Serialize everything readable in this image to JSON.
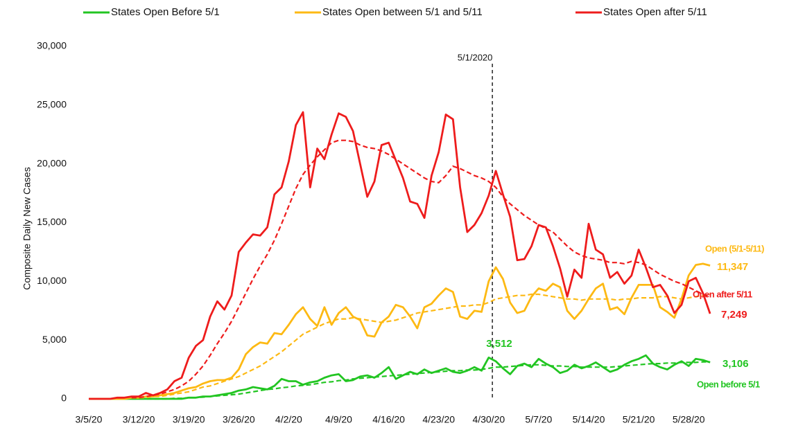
{
  "chart_data": {
    "type": "line",
    "y_label": "Composite Daily New Cases",
    "ylim": [
      0,
      30000
    ],
    "yticks": [
      0,
      {
        "value": 5000,
        "label": "5,000"
      },
      {
        "value": 10000,
        "label": "10,000"
      },
      {
        "value": 15000,
        "label": "15,000"
      },
      {
        "value": 20000,
        "label": "20,000"
      },
      {
        "value": 25000,
        "label": "25,000"
      },
      {
        "value": 30000,
        "label": "30,000"
      }
    ],
    "categories": [
      "3/5/20",
      null,
      null,
      null,
      null,
      null,
      null,
      "3/12/20",
      null,
      null,
      null,
      null,
      null,
      null,
      "3/19/20",
      null,
      null,
      null,
      null,
      null,
      null,
      "3/26/20",
      null,
      null,
      null,
      null,
      null,
      null,
      "4/2/20",
      null,
      null,
      null,
      null,
      null,
      null,
      "4/9/20",
      null,
      null,
      null,
      null,
      null,
      null,
      "4/16/20",
      null,
      null,
      null,
      null,
      null,
      null,
      "4/23/20",
      null,
      null,
      null,
      null,
      null,
      null,
      "4/30/20",
      null,
      null,
      null,
      null,
      null,
      null,
      "5/7/20",
      null,
      null,
      null,
      null,
      null,
      null,
      "5/14/20",
      null,
      null,
      null,
      null,
      null,
      null,
      "5/21/20",
      null,
      null,
      null,
      null,
      null,
      null,
      "5/28/20",
      null,
      null,
      null
    ],
    "annotation": {
      "text": "5/1/2020",
      "category_index": 57
    },
    "legend": "top",
    "series": [
      {
        "name": "States Open Before 5/1",
        "color": "#22c522",
        "end_label": "Open before 5/1",
        "values": [
          0,
          0,
          0,
          0,
          0,
          0,
          0,
          0,
          0,
          0,
          0,
          0,
          0,
          0,
          100,
          100,
          200,
          200,
          300,
          400,
          500,
          700,
          800,
          1000,
          900,
          800,
          1100,
          1700,
          1500,
          1500,
          1200,
          1400,
          1500,
          1800,
          2000,
          2100,
          1500,
          1600,
          1900,
          2000,
          1800,
          2200,
          2700,
          1700,
          2000,
          2300,
          2100,
          2500,
          2200,
          2400,
          2600,
          2300,
          2200,
          2400,
          2700,
          2400,
          3512,
          3200,
          2600,
          2100,
          2800,
          3000,
          2700,
          3400,
          3000,
          2700,
          2200,
          2400,
          2900,
          2600,
          2800,
          3100,
          2700,
          2300,
          2500,
          2900,
          3200,
          3400,
          3700,
          3000,
          2700,
          2500,
          2900,
          3200,
          2800,
          3400,
          3300,
          3106
        ],
        "value_labels": [
          null,
          null,
          null,
          null,
          null,
          null,
          null,
          null,
          null,
          null,
          null,
          null,
          null,
          null,
          null,
          null,
          null,
          null,
          null,
          null,
          null,
          null,
          null,
          null,
          null,
          null,
          null,
          null,
          null,
          null,
          null,
          null,
          null,
          null,
          null,
          null,
          null,
          null,
          null,
          null,
          null,
          null,
          null,
          null,
          null,
          null,
          null,
          null,
          null,
          null,
          null,
          null,
          null,
          null,
          null,
          null,
          "3,512",
          null,
          null,
          null,
          null,
          null,
          null,
          null,
          null,
          null,
          null,
          null,
          null,
          null,
          null,
          null,
          null,
          null,
          null,
          null,
          null,
          null,
          null,
          null,
          null,
          null,
          null,
          null,
          null,
          null,
          null,
          "3,106"
        ],
        "trend": [
          null,
          null,
          null,
          null,
          null,
          null,
          0,
          0,
          0,
          0,
          0,
          0,
          50,
          50,
          100,
          100,
          150,
          200,
          250,
          300,
          350,
          400,
          500,
          600,
          700,
          800,
          850,
          950,
          1000,
          1100,
          1150,
          1200,
          1300,
          1400,
          1450,
          1550,
          1600,
          1700,
          1750,
          1800,
          1850,
          1900,
          1950,
          2000,
          2050,
          2100,
          2150,
          2200,
          2250,
          2300,
          2350,
          2400,
          2400,
          2450,
          2450,
          2500,
          2600,
          2700,
          2700,
          2750,
          2800,
          2850,
          2900,
          2900,
          2850,
          2800,
          2800,
          2750,
          2750,
          2700,
          2700,
          2700,
          2700,
          2700,
          2750,
          2800,
          2850,
          2900,
          2950,
          3000,
          3000,
          3050,
          3050,
          3100,
          3100,
          3100,
          3150,
          3150
        ]
      },
      {
        "name": "States Open between 5/1 and 5/11",
        "color": "#fdb913",
        "end_label": "Open (5/1-5/11)",
        "values": [
          0,
          0,
          0,
          0,
          0,
          0,
          100,
          100,
          200,
          200,
          300,
          400,
          500,
          700,
          900,
          1000,
          1300,
          1500,
          1600,
          1600,
          1800,
          2500,
          3800,
          4400,
          4800,
          4700,
          5600,
          5500,
          6300,
          7200,
          7800,
          6800,
          6200,
          7800,
          6300,
          7300,
          7800,
          7000,
          6700,
          5400,
          5300,
          6500,
          7000,
          8000,
          7800,
          7000,
          6000,
          7800,
          8100,
          8800,
          9400,
          9100,
          7000,
          6800,
          7500,
          7400,
          10000,
          11200,
          10200,
          8200,
          7300,
          7500,
          8700,
          9400,
          9200,
          9800,
          9500,
          7500,
          6800,
          7500,
          8500,
          9400,
          9800,
          7600,
          7800,
          7200,
          8600,
          9700,
          9700,
          9700,
          7800,
          7400,
          6900,
          8500,
          10500,
          11400,
          11500,
          11347
        ],
        "value_labels": [
          null,
          null,
          null,
          null,
          null,
          null,
          null,
          null,
          null,
          null,
          null,
          null,
          null,
          null,
          null,
          null,
          null,
          null,
          null,
          null,
          null,
          null,
          null,
          null,
          null,
          null,
          null,
          null,
          null,
          null,
          null,
          null,
          null,
          null,
          null,
          null,
          null,
          null,
          null,
          null,
          null,
          null,
          null,
          null,
          null,
          null,
          null,
          null,
          null,
          null,
          null,
          null,
          null,
          null,
          null,
          null,
          null,
          null,
          null,
          null,
          null,
          null,
          null,
          null,
          null,
          null,
          null,
          null,
          null,
          null,
          null,
          null,
          null,
          null,
          null,
          null,
          null,
          null,
          null,
          null,
          null,
          null,
          null,
          null,
          null,
          null,
          null,
          "11,347"
        ],
        "trend": [
          null,
          null,
          null,
          null,
          null,
          null,
          100,
          100,
          100,
          200,
          200,
          300,
          400,
          500,
          600,
          800,
          1000,
          1100,
          1300,
          1500,
          1700,
          1900,
          2200,
          2500,
          2800,
          3200,
          3600,
          4000,
          4500,
          5000,
          5500,
          5800,
          6100,
          6400,
          6600,
          6800,
          6800,
          6900,
          6800,
          6700,
          6600,
          6500,
          6600,
          6700,
          6900,
          7100,
          7300,
          7400,
          7500,
          7600,
          7700,
          7800,
          7900,
          7900,
          8000,
          8000,
          8200,
          8500,
          8600,
          8700,
          8800,
          8800,
          8900,
          8900,
          8800,
          8700,
          8600,
          8500,
          8500,
          8400,
          8500,
          8500,
          8500,
          8500,
          8400,
          8500,
          8500,
          8600,
          8600,
          8600,
          8700,
          8700,
          8600,
          8500,
          8600,
          8700,
          8800,
          8900
        ]
      },
      {
        "name": "States Open after 5/11",
        "color": "#ee1c1c",
        "end_label": "Open after 5/11",
        "values": [
          0,
          0,
          0,
          0,
          100,
          100,
          200,
          200,
          500,
          300,
          500,
          800,
          1500,
          1800,
          3500,
          4500,
          5000,
          7000,
          8300,
          7600,
          8800,
          12500,
          13300,
          14000,
          13900,
          14600,
          17400,
          18000,
          20200,
          23300,
          24400,
          18000,
          21300,
          20400,
          22500,
          24300,
          24000,
          22800,
          20000,
          17200,
          18500,
          21600,
          21800,
          20300,
          18800,
          16800,
          16600,
          15400,
          19000,
          21000,
          24200,
          23800,
          18000,
          14200,
          14800,
          15800,
          17300,
          19400,
          17400,
          15500,
          11800,
          11900,
          13000,
          14800,
          14600,
          13000,
          11100,
          8700,
          11000,
          10300,
          14900,
          12700,
          12300,
          10300,
          10800,
          9800,
          10500,
          12700,
          11200,
          9500,
          9700,
          8800,
          7300,
          8000,
          10000,
          10300,
          9000,
          7249
        ],
        "value_labels": [
          null,
          null,
          null,
          null,
          null,
          null,
          null,
          null,
          null,
          null,
          null,
          null,
          null,
          null,
          null,
          null,
          null,
          null,
          null,
          null,
          null,
          null,
          null,
          null,
          null,
          null,
          null,
          null,
          null,
          null,
          null,
          null,
          null,
          null,
          null,
          null,
          null,
          null,
          null,
          null,
          null,
          null,
          null,
          null,
          null,
          null,
          null,
          null,
          null,
          null,
          null,
          null,
          null,
          null,
          null,
          null,
          null,
          null,
          null,
          null,
          null,
          null,
          null,
          null,
          null,
          null,
          null,
          null,
          null,
          null,
          null,
          null,
          null,
          null,
          null,
          null,
          null,
          null,
          null,
          null,
          null,
          null,
          null,
          null,
          null,
          null,
          null,
          "7,249"
        ],
        "trend": [
          null,
          null,
          null,
          null,
          null,
          null,
          100,
          100,
          200,
          300,
          400,
          600,
          800,
          1100,
          1500,
          2100,
          2800,
          3700,
          4700,
          5600,
          6600,
          7800,
          9000,
          10200,
          11300,
          12300,
          13500,
          14900,
          16400,
          17900,
          19100,
          19900,
          20600,
          21200,
          21800,
          22000,
          22000,
          21900,
          21600,
          21400,
          21300,
          21100,
          20800,
          20400,
          20000,
          19600,
          19200,
          18800,
          18500,
          18400,
          19000,
          19800,
          19600,
          19300,
          19000,
          18800,
          18500,
          18000,
          17200,
          16600,
          16100,
          15600,
          15200,
          14800,
          14500,
          14200,
          13600,
          13000,
          12500,
          12200,
          12000,
          11900,
          11800,
          11600,
          11600,
          11500,
          11700,
          11600,
          11400,
          11000,
          10600,
          10300,
          10000,
          9800,
          9500,
          9200,
          8900,
          8700
        ]
      }
    ]
  }
}
